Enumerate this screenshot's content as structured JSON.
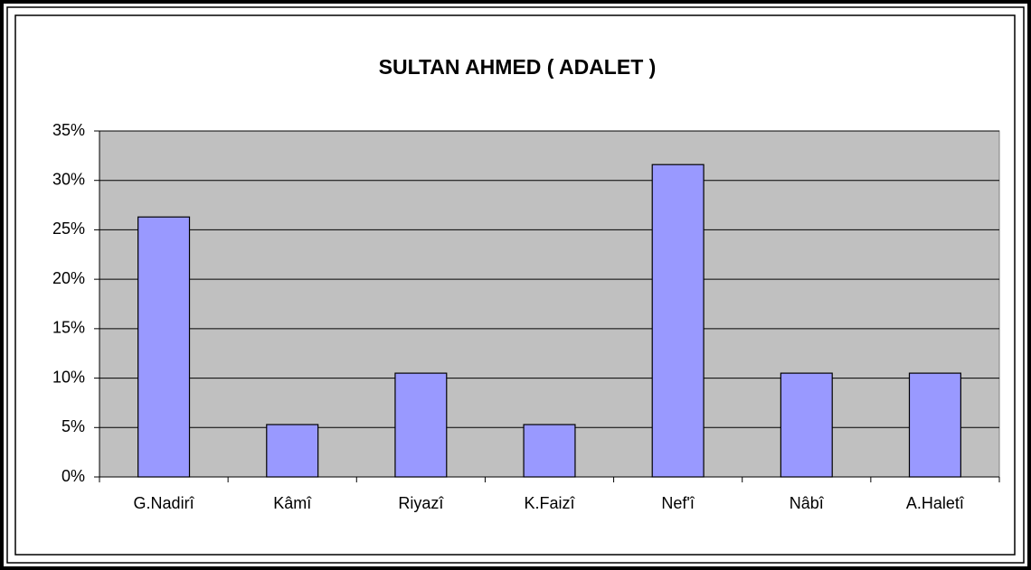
{
  "chart_data": {
    "type": "bar",
    "title": "SULTAN AHMED ( ADALET )",
    "categories": [
      "G.Nadirî",
      "Kâmî",
      "Riyazî",
      "K.Faizî",
      "Nef'î",
      "Nâbî",
      "A.Haletî"
    ],
    "values": [
      26.3,
      5.3,
      10.5,
      5.3,
      31.6,
      10.5,
      10.5
    ],
    "color": "#9999ff",
    "ylim": [
      0,
      35
    ],
    "yticks": [
      {
        "value": 0,
        "label": "0%"
      },
      {
        "value": 5,
        "label": "5%"
      },
      {
        "value": 10,
        "label": "10%"
      },
      {
        "value": 15,
        "label": "15%"
      },
      {
        "value": 20,
        "label": "20%"
      },
      {
        "value": 25,
        "label": "25%"
      },
      {
        "value": 30,
        "label": "30%"
      },
      {
        "value": 35,
        "label": "35%"
      }
    ],
    "grid": true
  }
}
